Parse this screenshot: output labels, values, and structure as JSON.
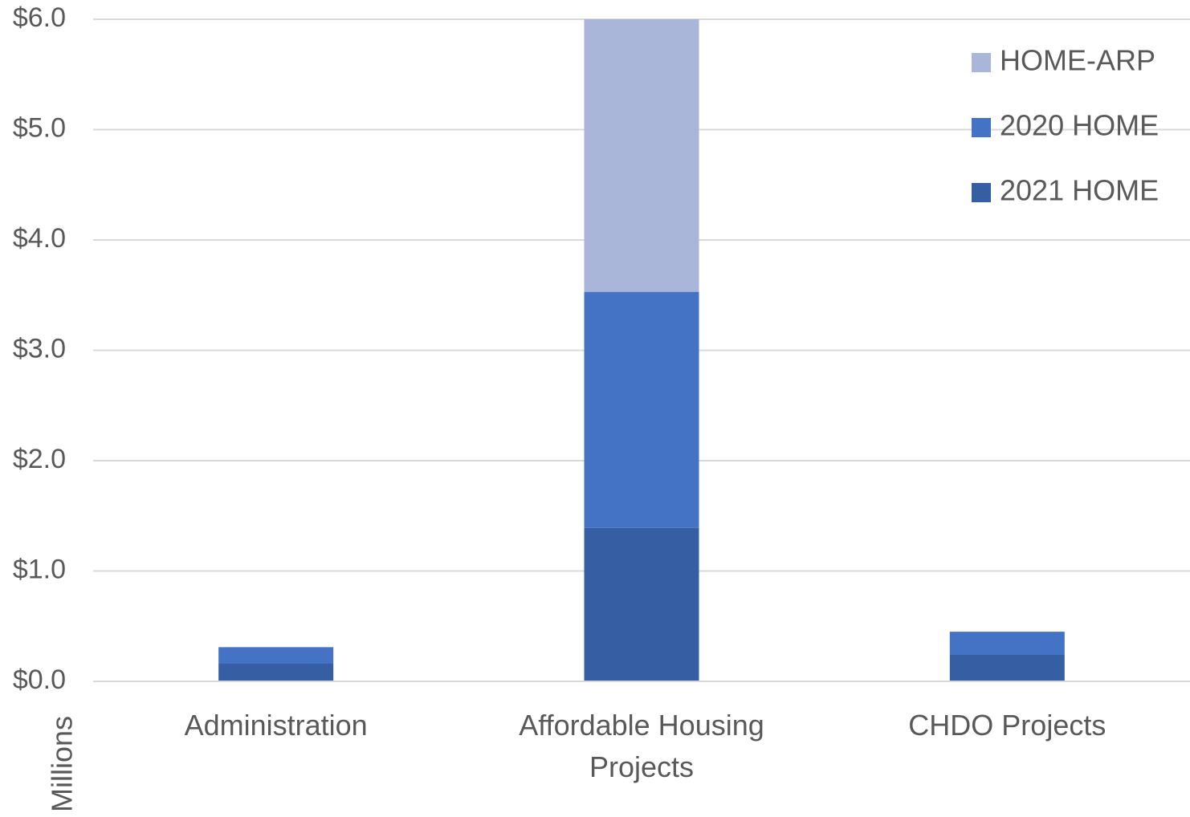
{
  "chart_data": {
    "type": "stacked_bar",
    "categories": [
      "Administration",
      "Affordable Housing Projects",
      "CHDO Projects"
    ],
    "series": [
      {
        "name": "2021 HOME",
        "color": "#365fa3",
        "values": [
          0.16,
          1.39,
          0.24
        ]
      },
      {
        "name": "2020 HOME",
        "color": "#4472c4",
        "values": [
          0.15,
          2.14,
          0.21
        ]
      },
      {
        "name": "HOME-ARP",
        "color": "#a9b6d9",
        "values": [
          0,
          2.47,
          0
        ]
      }
    ],
    "ylabel": "Millions",
    "ylim": [
      0,
      6
    ],
    "yticks": [
      {
        "value": 0,
        "label": "$0.0"
      },
      {
        "value": 1,
        "label": "$1.0"
      },
      {
        "value": 2,
        "label": "$2.0"
      },
      {
        "value": 3,
        "label": "$3.0"
      },
      {
        "value": 4,
        "label": "$4.0"
      },
      {
        "value": 5,
        "label": "$5.0"
      },
      {
        "value": 6,
        "label": "$6.0"
      }
    ],
    "grid": true,
    "legend": "upper right"
  }
}
